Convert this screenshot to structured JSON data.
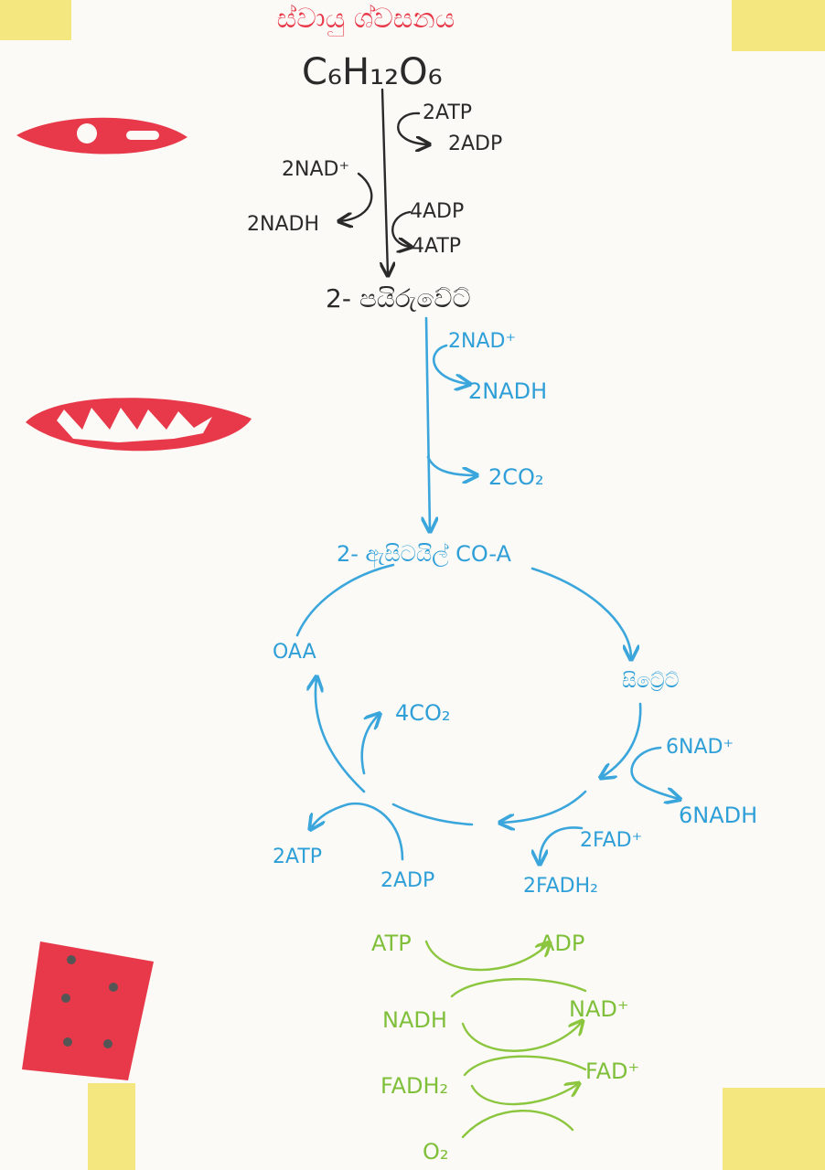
{
  "title": "ස්වායු ශ්වසනය",
  "glycolysis": {
    "substrate": "C₆H₁₂O₆",
    "atp_in": "2ATP",
    "adp_out": "2ADP",
    "nad_in": "2NAD⁺",
    "nadh_out": "2NADH",
    "adp_in": "4ADP",
    "atp_out": "4ATP",
    "product": "2- පයිරුවේට්"
  },
  "link_reaction": {
    "nad_in": "2NAD⁺",
    "nadh_out": "2NADH",
    "co2_out": "2CO₂",
    "product": "2- ඇසිටයිල් CO-A"
  },
  "krebs": {
    "oaa": "OAA",
    "citrate": "සිට්‍රේට්",
    "co2": "4CO₂",
    "nad_in": "6NAD⁺",
    "nadh_out": "6NADH",
    "fad_in": "2FAD⁺",
    "fadh2_out": "2FADH₂",
    "atp_out": "2ATP",
    "adp_in": "2ADP"
  },
  "etc": {
    "atp": "ATP",
    "adp": "ADP",
    "nadh": "NADH",
    "nad": "NAD⁺",
    "fadh2": "FADH₂",
    "fad": "FAD⁺",
    "o2": "O₂"
  },
  "colors": {
    "glycolysis": "#2a2a2a",
    "krebs": "#2f9fd8",
    "etc": "#7fbf3a",
    "organelle": "#e8394a",
    "tape": "#f3e36a"
  },
  "icons": [
    "cytoplasm-cell-icon",
    "mitochondrion-icon",
    "cristae-membrane-icon"
  ]
}
